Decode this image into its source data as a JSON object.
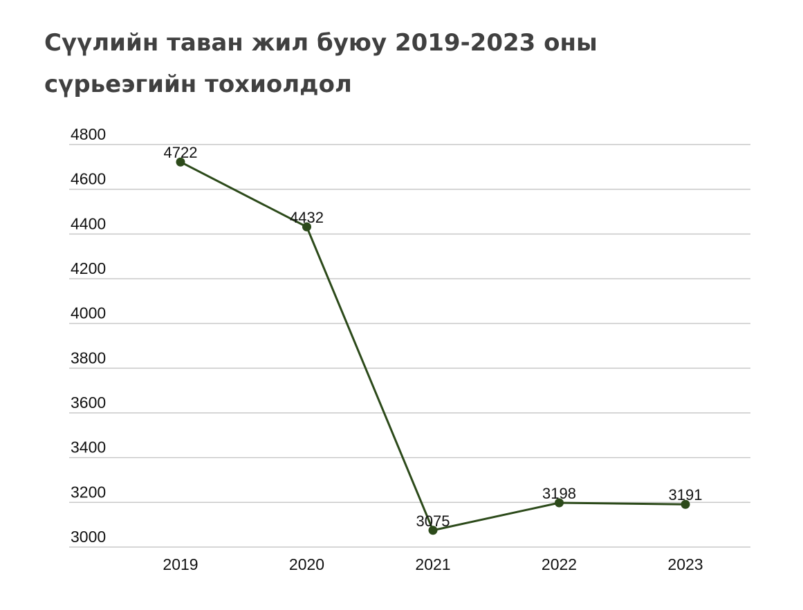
{
  "title": "Сүүлийн таван жил буюу 2019-2023 оны сүрьеэгийн тохиолдол",
  "colors": {
    "line": "#2c4a1a",
    "grid": "#c8c8c8",
    "text": "#111111",
    "title": "#404040"
  },
  "chart_data": {
    "type": "line",
    "title": "Сүүлийн таван жил буюу 2019-2023 оны сүрьеэгийн тохиолдол",
    "xlabel": "",
    "ylabel": "",
    "categories": [
      "2019",
      "2020",
      "2021",
      "2022",
      "2023"
    ],
    "series": [
      {
        "values": [
          4722,
          4432,
          3075,
          3198,
          3191
        ]
      }
    ],
    "data_labels": [
      "4722",
      "4432",
      "3075",
      "3198",
      "3191"
    ],
    "ylim": [
      3000,
      4800
    ],
    "yticks": [
      3000,
      3200,
      3400,
      3600,
      3800,
      4000,
      4200,
      4400,
      4600,
      4800
    ],
    "ytick_labels": [
      "3000",
      "3200",
      "3400",
      "3600",
      "3800",
      "4000",
      "4200",
      "4400",
      "4600",
      "4800"
    ],
    "grid": true,
    "legend": "none",
    "markers": true
  }
}
